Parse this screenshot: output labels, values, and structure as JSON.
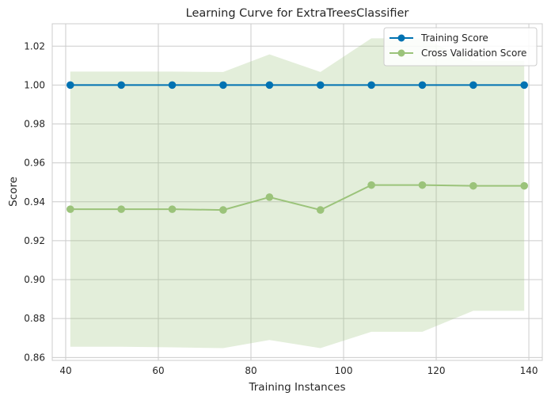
{
  "chart_data": {
    "type": "line",
    "title": "Learning Curve for ExtraTreesClassifier",
    "xlabel": "Training Instances",
    "ylabel": "Score",
    "xlim": [
      37.1,
      142.9
    ],
    "ylim": [
      0.8585,
      1.0315
    ],
    "xticks": [
      40,
      60,
      80,
      100,
      120,
      140
    ],
    "yticks": [
      0.86,
      0.88,
      0.9,
      0.92,
      0.94,
      0.96,
      0.98,
      1.0,
      1.02
    ],
    "grid": true,
    "legend_position": "top-right",
    "x": [
      41,
      52,
      63,
      74,
      84,
      95,
      106,
      117,
      128,
      139
    ],
    "series": [
      {
        "name": "Training Score",
        "color": "#0072b2",
        "values": [
          1.0,
          1.0,
          1.0,
          1.0,
          1.0,
          1.0,
          1.0,
          1.0,
          1.0,
          1.0
        ],
        "band_lower": [
          1.0,
          1.0,
          1.0,
          1.0,
          1.0,
          1.0,
          1.0,
          1.0,
          1.0,
          1.0
        ],
        "band_upper": [
          1.0,
          1.0,
          1.0,
          1.0,
          1.0,
          1.0,
          1.0,
          1.0,
          1.0,
          1.0
        ]
      },
      {
        "name": "Cross Validation Score",
        "color": "#9bc37a",
        "values": [
          0.9362,
          0.9362,
          0.9362,
          0.9358,
          0.9424,
          0.9358,
          0.9486,
          0.9486,
          0.9482,
          0.9482
        ],
        "band_lower": [
          0.8655,
          0.8655,
          0.8652,
          0.8648,
          0.869,
          0.8648,
          0.8732,
          0.8732,
          0.884,
          0.884
        ],
        "band_upper": [
          1.0069,
          1.0069,
          1.0069,
          1.0067,
          1.0158,
          1.0067,
          1.024,
          1.024,
          1.0124,
          1.0124
        ]
      }
    ]
  }
}
